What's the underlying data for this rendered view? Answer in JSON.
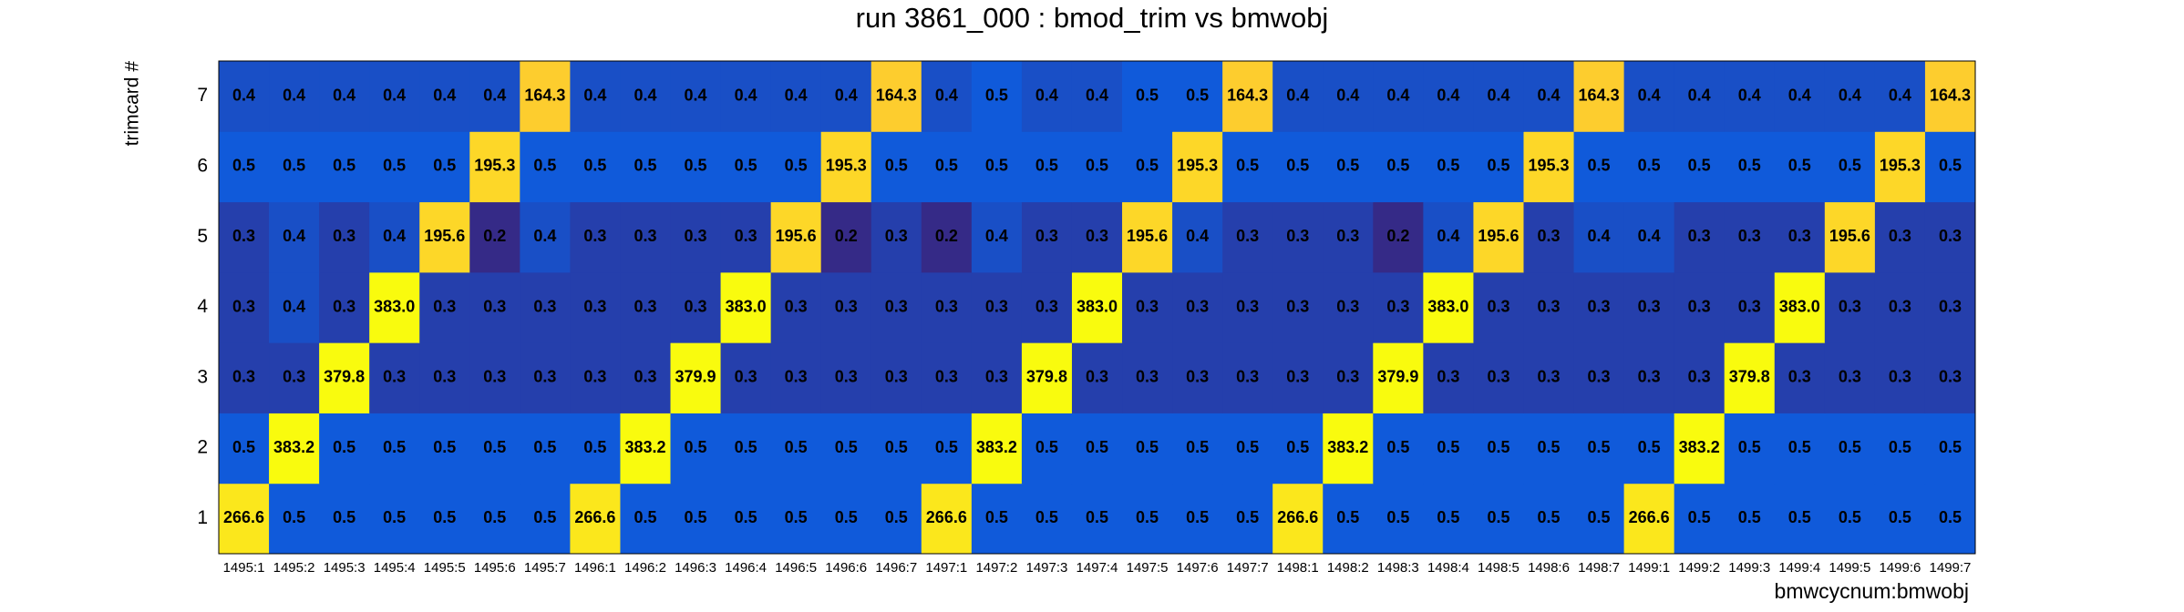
{
  "chart_data": {
    "type": "heatmap",
    "title": "run 3861_000 : bmod_trim vs bmwobj",
    "x_label": "bmwcycnum:bmwobj",
    "y_label": "trimcard #",
    "categories": [
      "1495:1",
      "1495:2",
      "1495:3",
      "1495:4",
      "1495:5",
      "1495:6",
      "1495:7",
      "1496:1",
      "1496:2",
      "1496:3",
      "1496:4",
      "1496:5",
      "1496:6",
      "1496:7",
      "1497:1",
      "1497:2",
      "1497:3",
      "1497:4",
      "1497:5",
      "1497:6",
      "1497:7",
      "1498:1",
      "1498:2",
      "1498:3",
      "1498:4",
      "1498:5",
      "1498:6",
      "1498:7",
      "1499:1",
      "1499:2",
      "1499:3",
      "1499:4",
      "1499:5",
      "1499:6",
      "1499:7"
    ],
    "series": [
      {
        "name": "1",
        "values": [
          266.6,
          0.5,
          0.5,
          0.5,
          0.5,
          0.5,
          0.5,
          266.6,
          0.5,
          0.5,
          0.5,
          0.5,
          0.5,
          0.5,
          266.6,
          0.5,
          0.5,
          0.5,
          0.5,
          0.5,
          0.5,
          266.6,
          0.5,
          0.5,
          0.5,
          0.5,
          0.5,
          0.5,
          266.6,
          0.5,
          0.5,
          0.5,
          0.5,
          0.5,
          0.5
        ]
      },
      {
        "name": "2",
        "values": [
          0.5,
          383.2,
          0.5,
          0.5,
          0.5,
          0.5,
          0.5,
          0.5,
          383.2,
          0.5,
          0.5,
          0.5,
          0.5,
          0.5,
          0.5,
          383.2,
          0.5,
          0.5,
          0.5,
          0.5,
          0.5,
          0.5,
          383.2,
          0.5,
          0.5,
          0.5,
          0.5,
          0.5,
          0.5,
          383.2,
          0.5,
          0.5,
          0.5,
          0.5,
          0.5
        ]
      },
      {
        "name": "3",
        "values": [
          0.3,
          0.3,
          379.8,
          0.3,
          0.3,
          0.3,
          0.3,
          0.3,
          0.3,
          379.9,
          0.3,
          0.3,
          0.3,
          0.3,
          0.3,
          0.3,
          379.8,
          0.3,
          0.3,
          0.3,
          0.3,
          0.3,
          0.3,
          379.9,
          0.3,
          0.3,
          0.3,
          0.3,
          0.3,
          0.3,
          379.8,
          0.3,
          0.3,
          0.3,
          0.3
        ]
      },
      {
        "name": "4",
        "values": [
          0.3,
          0.4,
          0.3,
          383,
          0.3,
          0.3,
          0.3,
          0.3,
          0.3,
          0.3,
          383,
          0.3,
          0.3,
          0.3,
          0.3,
          0.3,
          0.3,
          383,
          0.3,
          0.3,
          0.3,
          0.3,
          0.3,
          0.3,
          383,
          0.3,
          0.3,
          0.3,
          0.3,
          0.3,
          0.3,
          383,
          0.3,
          0.3,
          0.3
        ],
        "value_labels": [
          "0.3",
          "0.4",
          "0.3",
          "383.0",
          "0.3",
          "0.3",
          "0.3",
          "0.3",
          "0.3",
          "0.3",
          "383.0",
          "0.3",
          "0.3",
          "0.3",
          "0.3",
          "0.3",
          "0.3",
          "383.0",
          "0.3",
          "0.3",
          "0.3",
          "0.3",
          "0.3",
          "0.3",
          "383.0",
          "0.3",
          "0.3",
          "0.3",
          "0.3",
          "0.3",
          "0.3",
          "383.0",
          "0.3",
          "0.3",
          "0.3"
        ]
      },
      {
        "name": "5",
        "values": [
          0.3,
          0.4,
          0.3,
          0.4,
          195.6,
          0.2,
          0.4,
          0.3,
          0.3,
          0.3,
          0.3,
          195.6,
          0.2,
          0.3,
          0.2,
          0.4,
          0.3,
          0.3,
          195.6,
          0.4,
          0.3,
          0.3,
          0.3,
          0.2,
          0.4,
          195.6,
          0.3,
          0.4,
          0.4,
          0.3,
          0.3,
          0.3,
          195.6,
          0.3,
          0.3
        ]
      },
      {
        "name": "6",
        "values": [
          0.5,
          0.5,
          0.5,
          0.5,
          0.5,
          195.3,
          0.5,
          0.5,
          0.5,
          0.5,
          0.5,
          0.5,
          195.3,
          0.5,
          0.5,
          0.5,
          0.5,
          0.5,
          0.5,
          195.3,
          0.5,
          0.5,
          0.5,
          0.5,
          0.5,
          0.5,
          195.3,
          0.5,
          0.5,
          0.5,
          0.5,
          0.5,
          0.5,
          195.3,
          0.5
        ]
      },
      {
        "name": "7",
        "values": [
          0.4,
          0.4,
          0.4,
          0.4,
          0.4,
          0.4,
          164.3,
          0.4,
          0.4,
          0.4,
          0.4,
          0.4,
          0.4,
          164.3,
          0.4,
          0.5,
          0.4,
          0.4,
          0.5,
          0.5,
          164.3,
          0.4,
          0.4,
          0.4,
          0.4,
          0.4,
          0.4,
          164.3,
          0.4,
          0.4,
          0.4,
          0.4,
          0.4,
          0.4,
          164.3
        ]
      }
    ],
    "palette": [
      "#352a87",
      "#0f5cdd",
      "#1481d6",
      "#06a4ca",
      "#2eb7a4",
      "#87bf77",
      "#d1bb59",
      "#fec832",
      "#f9fb0e"
    ],
    "log_color_scale": true
  }
}
